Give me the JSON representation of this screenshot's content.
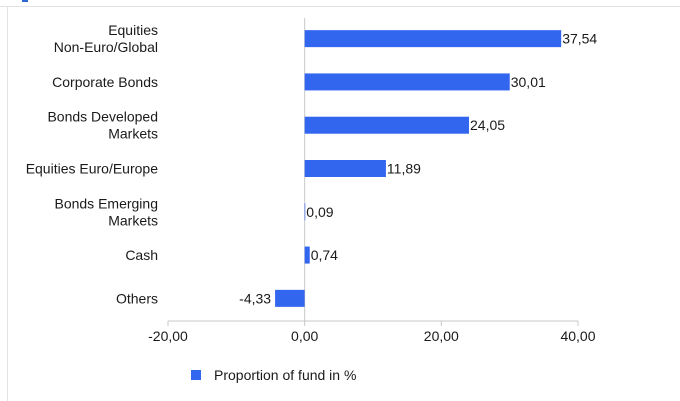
{
  "chart_data": {
    "type": "bar",
    "orientation": "horizontal",
    "categories": [
      [
        "Equities",
        "Non-Euro/Global"
      ],
      [
        "Corporate Bonds"
      ],
      [
        "Bonds Developed",
        "Markets"
      ],
      [
        "Equities Euro/Europe"
      ],
      [
        "Bonds Emerging",
        "Markets"
      ],
      [
        "Cash"
      ],
      [
        "Others"
      ]
    ],
    "series": [
      {
        "name": "Proportion of fund in %",
        "values": [
          37.54,
          30.01,
          24.05,
          11.89,
          0.09,
          0.74,
          -4.33
        ],
        "value_labels": [
          "37,54",
          "30,01",
          "24,05",
          "11,89",
          "0,09",
          "0,74",
          "-4,33"
        ],
        "color": "#3366ee"
      }
    ],
    "xlim": [
      -20,
      40
    ],
    "xticks": [
      -20,
      0,
      20,
      40
    ],
    "xtick_labels": [
      "-20,00",
      "0,00",
      "20,00",
      "40,00"
    ],
    "grid": false,
    "legend": {
      "position": "bottom",
      "label": "Proportion of fund in %"
    },
    "colors": {
      "bar": "#3366ee",
      "axis": "#c8c8c8",
      "frame": "#e3e3e3",
      "accent": "#2f66d6"
    }
  }
}
